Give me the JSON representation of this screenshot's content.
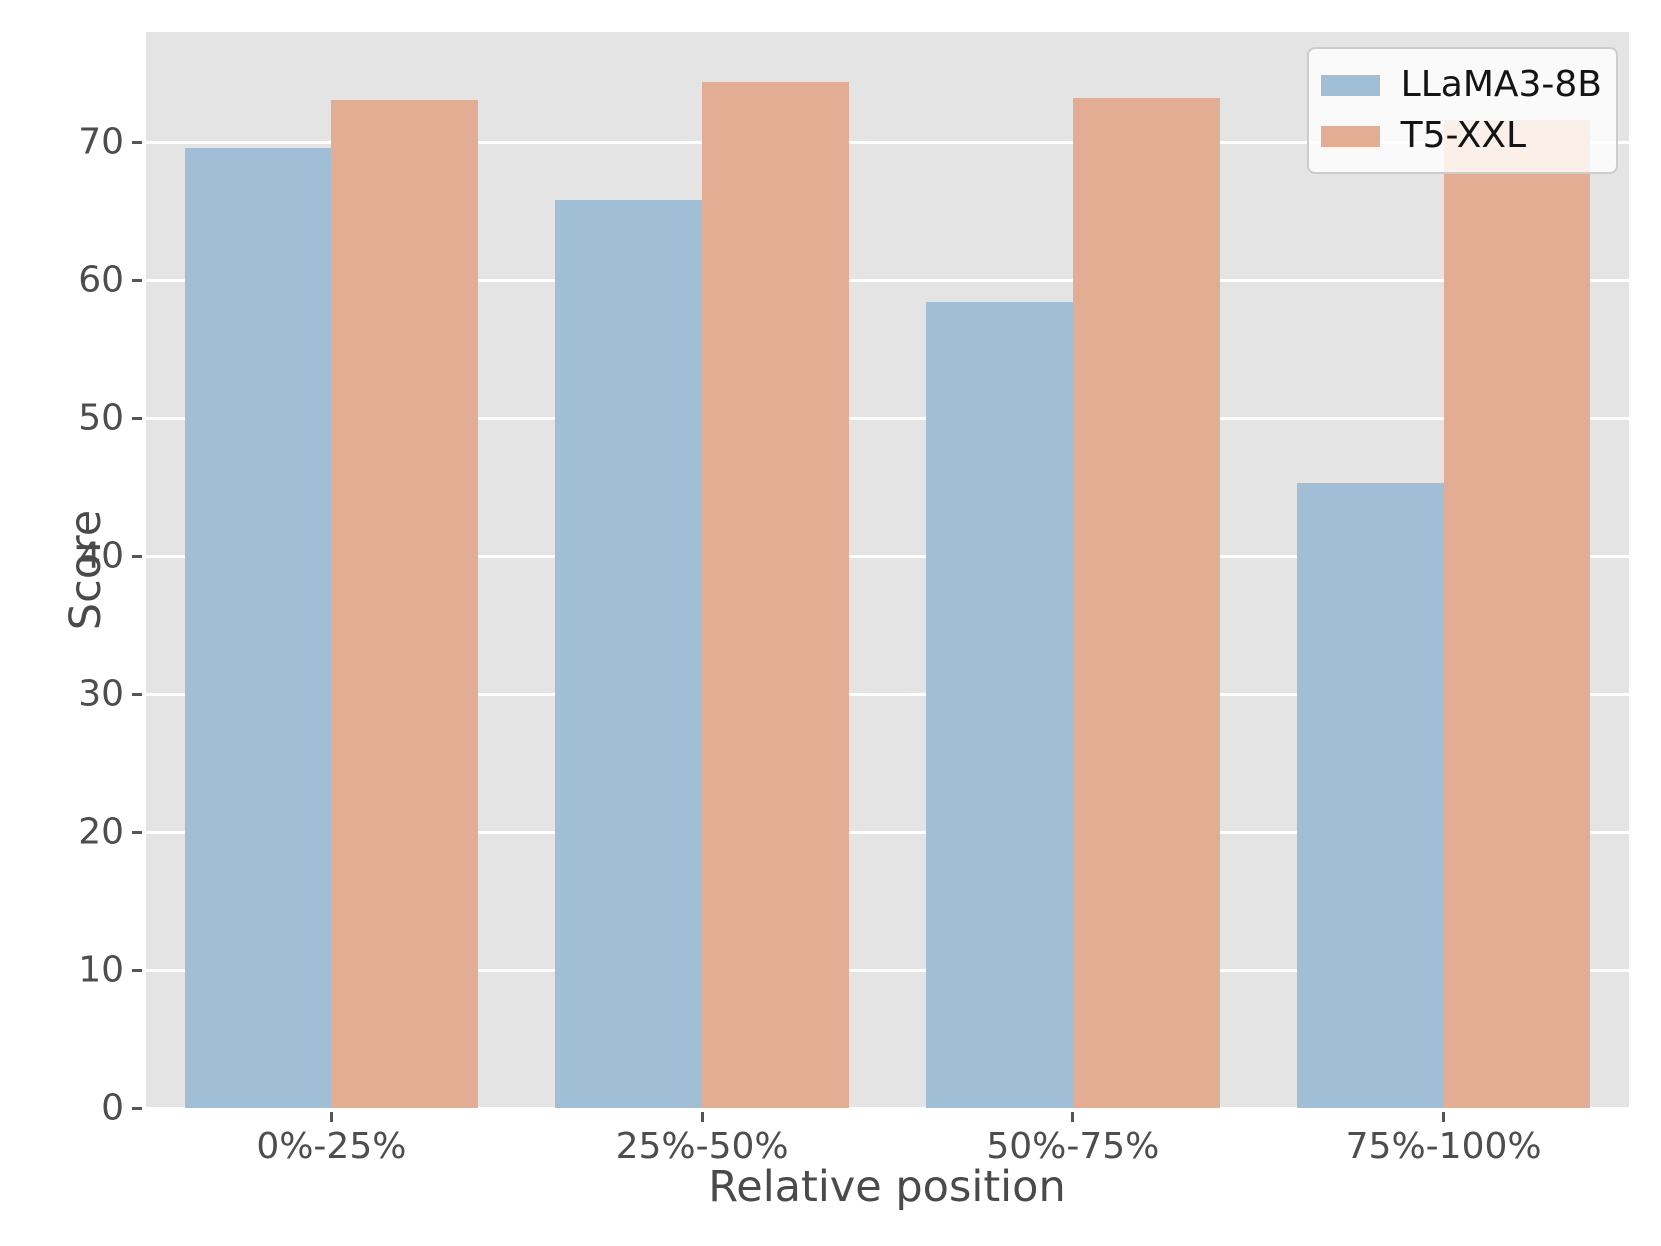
{
  "chart_data": {
    "type": "bar",
    "title": "",
    "xlabel": "Relative position",
    "ylabel": "Score",
    "categories": [
      "0%-25%",
      "25%-50%",
      "50%-75%",
      "75%-100%"
    ],
    "series": [
      {
        "name": "LLaMA3-8B",
        "color": "#a0bfd6",
        "values": [
          69.6,
          65.8,
          58.4,
          45.3
        ]
      },
      {
        "name": "T5-XXL",
        "color": "#e3ad93",
        "values": [
          73.1,
          74.4,
          73.2,
          71.6
        ]
      }
    ],
    "ylim": [
      0,
      78
    ],
    "yticks": [
      0,
      10,
      20,
      30,
      40,
      50,
      60,
      70
    ],
    "grid": true,
    "grid_color": "#ffffff",
    "plot_bg": "#e4e4e4",
    "tick_color": "#555555",
    "text_color": "#4d4d4d",
    "legend_position": "upper right",
    "bar_width_fraction": 0.099
  }
}
